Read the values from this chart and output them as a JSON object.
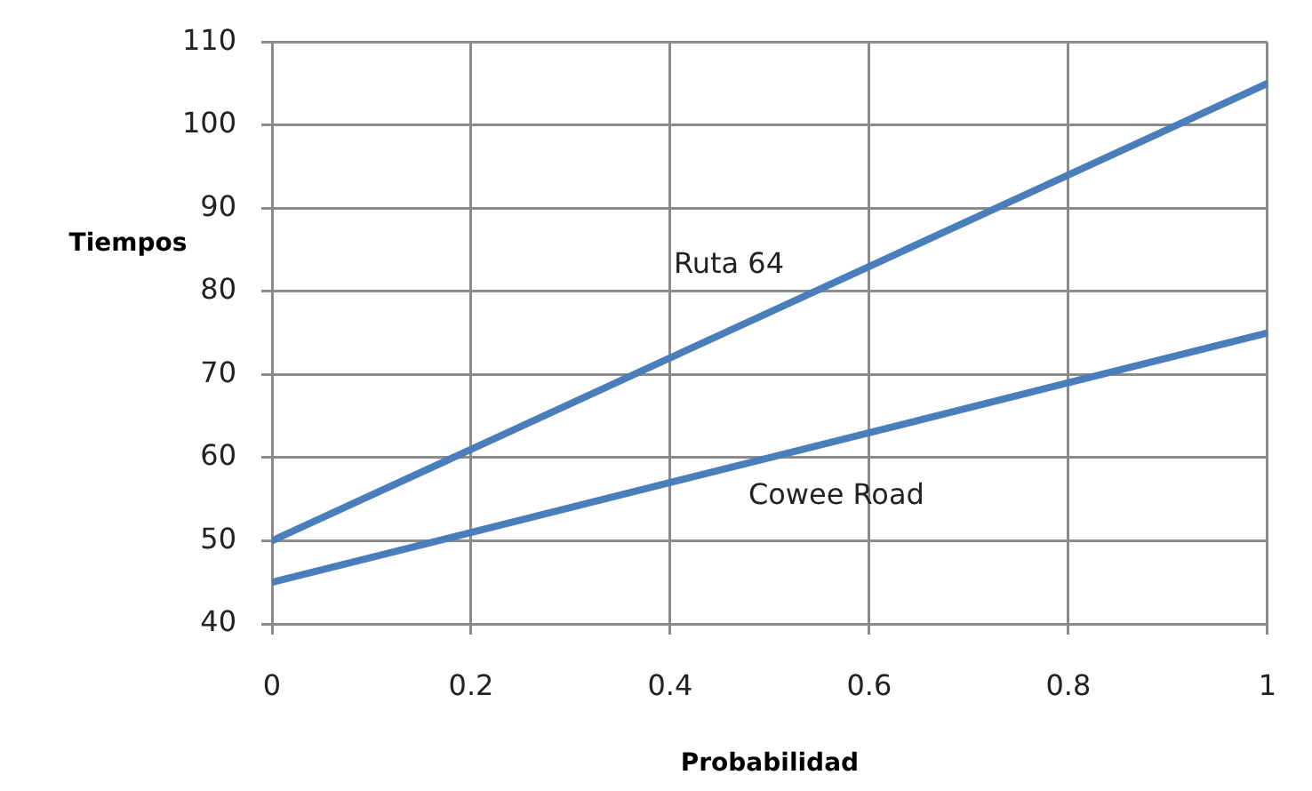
{
  "chart_data": {
    "type": "line",
    "xlabel": "Probabilidad",
    "ylabel": "Tiempos",
    "x": [
      0,
      0.2,
      0.4,
      0.6,
      0.8,
      1
    ],
    "series": [
      {
        "name": "Ruta 64",
        "color": "#4a7ebb",
        "values": [
          50,
          61,
          72,
          83,
          94,
          105
        ]
      },
      {
        "name": "Cowee Road",
        "color": "#4a7ebb",
        "values": [
          45,
          51,
          57,
          63,
          69,
          75
        ]
      }
    ],
    "xlim": [
      0,
      1
    ],
    "ylim": [
      40,
      110
    ],
    "xticks": [
      0,
      0.2,
      0.4,
      0.6,
      0.8,
      1
    ],
    "yticks": [
      40,
      50,
      60,
      70,
      80,
      90,
      100,
      110
    ],
    "grid": true,
    "legend": false,
    "marker": "none",
    "line_style": "solid"
  }
}
